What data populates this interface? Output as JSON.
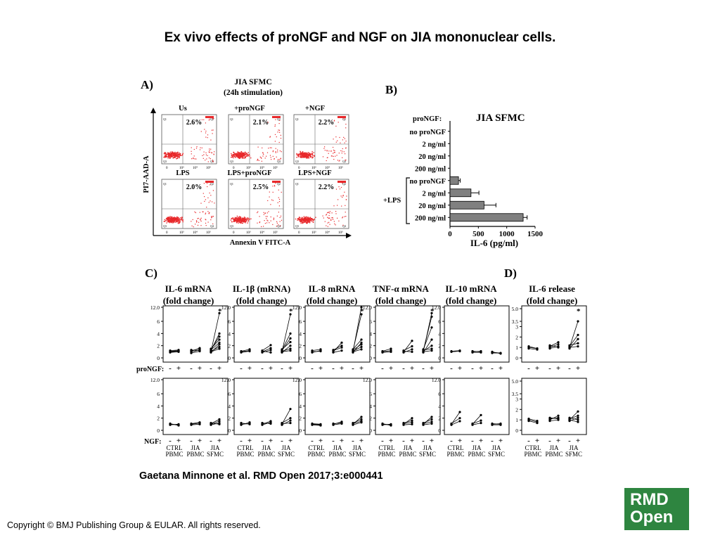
{
  "title": "Ex vivo effects of proNGF and NGF on JIA mononuclear cells.",
  "citation": "Gaetana Minnone et al. RMD Open 2017;3:e000441",
  "copyright": "Copyright © BMJ Publishing Group & EULAR. All rights reserved.",
  "logo": {
    "line1": "RMD",
    "line2": "Open",
    "color": "#2e8540"
  },
  "panel_a": {
    "label": "A)",
    "heading1": "JIA SFMC",
    "heading2": "(24h stimulation)",
    "ylabel": "PI7-AAD-A",
    "xlabel": "Annexin V FITC-A",
    "plots": [
      {
        "name": "Us",
        "pct": "2.6%"
      },
      {
        "name": "+proNGF",
        "pct": "2.1%"
      },
      {
        "name": "+NGF",
        "pct": "2.2%"
      },
      {
        "name": "LPS",
        "pct": "2.0%"
      },
      {
        "name": "LPS+proNGF",
        "pct": "2.5%"
      },
      {
        "name": "LPS+NGF",
        "pct": "2.2%"
      }
    ],
    "quadrants": [
      "Q1",
      "Q2",
      "Q3",
      "Q4"
    ],
    "axis_ticks": [
      "0",
      "10³",
      "10⁴",
      "10⁵"
    ]
  },
  "chart_data": [
    {
      "type": "bar",
      "orientation": "horizontal",
      "title": "JIA SFMC",
      "panel": "B)",
      "group_header": "proNGF:",
      "group_label": "+LPS",
      "categories": [
        "no proNGF",
        "2 ng/ml",
        "20 ng/ml",
        "200 ng/ml",
        "no proNGF",
        "2 ng/ml",
        "20 ng/ml",
        "200 ng/ml"
      ],
      "values": [
        0,
        0,
        0,
        0,
        150,
        370,
        600,
        1290
      ],
      "errors": [
        0,
        0,
        0,
        0,
        30,
        140,
        210,
        70
      ],
      "xlabel": "IL-6 (pg/ml)",
      "xlim": [
        0,
        1500
      ],
      "xticks": [
        "0",
        "500",
        "1000",
        "1500"
      ],
      "bar_color": "#808080"
    },
    {
      "type": "line",
      "panel": "C)",
      "titles": [
        {
          "line1": "IL-6 mRNA",
          "line2": "(fold change)"
        },
        {
          "line1": "IL-1β (mRNA)",
          "line2": "(fold change)"
        },
        {
          "line1": "IL-8 mRNA",
          "line2": "(fold change)"
        },
        {
          "line1": "TNF-α mRNA",
          "line2": "(fold change)"
        },
        {
          "line1": "IL-10 mRNA",
          "line2": "(fold change)"
        }
      ],
      "row1_treatment": "proNGF:",
      "row2_treatment": "NGF:",
      "groups": [
        {
          "line1": "CTRL",
          "line2": "PBMC"
        },
        {
          "line1": "JIA",
          "line2": "PBMC"
        },
        {
          "line1": "JIA",
          "line2": "SFMC"
        }
      ],
      "signs": [
        "-",
        "+"
      ],
      "star": "*",
      "yticks": [
        "0",
        "2",
        "4",
        "6",
        "12.0"
      ],
      "ylim": [
        0,
        12
      ],
      "series": {
        "proNGF": [
          {
            "ctrl": [
              [
                1.0,
                1.1
              ],
              [
                1.2,
                1.3
              ],
              [
                0.9,
                1.0
              ],
              [
                1.1,
                1.2
              ]
            ],
            "jia": [
              [
                1.0,
                1.3
              ],
              [
                1.2,
                1.5
              ],
              [
                0.8,
                1.1
              ],
              [
                1.1,
                1.6
              ],
              [
                1.3,
                1.2
              ]
            ],
            "sf": [
              [
                1.0,
                9.5
              ],
              [
                1.2,
                4.0
              ],
              [
                1.5,
                3.0
              ],
              [
                0.9,
                2.2
              ],
              [
                1.1,
                1.8
              ],
              [
                1.3,
                2.5
              ],
              [
                1.0,
                1.5
              ],
              [
                1.4,
                3.5
              ]
            ],
            "star": true
          },
          {
            "ctrl": [
              [
                1.0,
                1.2
              ],
              [
                1.1,
                1.4
              ],
              [
                0.9,
                1.1
              ]
            ],
            "jia": [
              [
                1.0,
                1.6
              ],
              [
                1.2,
                2.1
              ],
              [
                0.9,
                1.3
              ],
              [
                1.1,
                0.9
              ]
            ],
            "sf": [
              [
                1.0,
                9.0
              ],
              [
                1.2,
                3.2
              ],
              [
                1.4,
                2.6
              ],
              [
                0.9,
                2.0
              ],
              [
                1.1,
                1.5
              ],
              [
                1.3,
                4.0
              ],
              [
                1.0,
                1.2
              ]
            ],
            "star": true
          },
          {
            "ctrl": [
              [
                1.0,
                1.1
              ],
              [
                1.2,
                1.4
              ],
              [
                0.9,
                1.2
              ]
            ],
            "jia": [
              [
                1.0,
                2.5
              ],
              [
                1.2,
                1.7
              ],
              [
                0.9,
                1.2
              ],
              [
                1.3,
                2.0
              ]
            ],
            "sf": [
              [
                1.0,
                12.0
              ],
              [
                1.2,
                9.0
              ],
              [
                1.4,
                3.0
              ],
              [
                0.9,
                2.5
              ],
              [
                1.1,
                1.8
              ],
              [
                1.3,
                2.2
              ],
              [
                1.0,
                1.4
              ]
            ],
            "star": true
          },
          {
            "ctrl": [
              [
                1.0,
                1.2
              ],
              [
                1.1,
                1.5
              ],
              [
                0.9,
                1.0
              ]
            ],
            "jia": [
              [
                1.0,
                2.8
              ],
              [
                1.2,
                1.9
              ],
              [
                0.9,
                1.4
              ],
              [
                1.1,
                1.0
              ]
            ],
            "sf": [
              [
                1.0,
                9.5
              ],
              [
                1.2,
                8.0
              ],
              [
                1.4,
                5.0
              ],
              [
                0.9,
                3.0
              ],
              [
                1.1,
                2.0
              ],
              [
                1.3,
                1.5
              ],
              [
                1.0,
                1.2
              ]
            ],
            "star": true
          },
          {
            "ctrl": [
              [
                1.0,
                1.1
              ],
              [
                1.1,
                1.2
              ]
            ],
            "jia": [
              [
                1.0,
                1.1
              ],
              [
                1.1,
                1.0
              ],
              [
                0.9,
                0.9
              ]
            ],
            "sf": [
              [
                0.9,
                0.8
              ],
              [
                1.0,
                0.7
              ],
              [
                0.8,
                0.8
              ]
            ],
            "star": false
          }
        ],
        "NGF": [
          {
            "ctrl": [
              [
                1.0,
                0.9
              ],
              [
                1.1,
                0.8
              ],
              [
                0.9,
                1.0
              ]
            ],
            "jia": [
              [
                1.0,
                1.2
              ],
              [
                1.1,
                1.3
              ],
              [
                0.9,
                1.0
              ]
            ],
            "sf": [
              [
                1.0,
                1.5
              ],
              [
                1.1,
                1.8
              ],
              [
                0.9,
                1.2
              ],
              [
                1.2,
                1.0
              ]
            ]
          },
          {
            "ctrl": [
              [
                1.0,
                1.1
              ],
              [
                1.2,
                1.0
              ],
              [
                0.9,
                1.3
              ]
            ],
            "jia": [
              [
                1.0,
                1.5
              ],
              [
                1.2,
                1.1
              ],
              [
                0.9,
                1.3
              ]
            ],
            "sf": [
              [
                1.0,
                3.5
              ],
              [
                1.2,
                2.0
              ],
              [
                0.9,
                1.6
              ],
              [
                1.1,
                1.2
              ]
            ]
          },
          {
            "ctrl": [
              [
                1.0,
                0.9
              ],
              [
                1.1,
                1.0
              ],
              [
                0.9,
                0.8
              ]
            ],
            "jia": [
              [
                1.0,
                1.4
              ],
              [
                1.1,
                1.2
              ],
              [
                0.9,
                1.1
              ]
            ],
            "sf": [
              [
                1.0,
                2.2
              ],
              [
                1.1,
                1.5
              ],
              [
                0.9,
                1.3
              ],
              [
                1.2,
                1.8
              ]
            ]
          },
          {
            "ctrl": [
              [
                1.0,
                0.9
              ],
              [
                1.1,
                0.8
              ],
              [
                0.9,
                1.0
              ]
            ],
            "jia": [
              [
                1.0,
                2.0
              ],
              [
                1.1,
                1.3
              ],
              [
                0.9,
                1.0
              ],
              [
                1.2,
                1.6
              ]
            ],
            "sf": [
              [
                1.0,
                2.2
              ],
              [
                1.1,
                1.4
              ],
              [
                0.9,
                1.1
              ],
              [
                1.2,
                1.8
              ]
            ]
          },
          {
            "ctrl": [
              [
                1.0,
                3.0
              ],
              [
                1.1,
                2.0
              ],
              [
                0.9,
                1.5
              ]
            ],
            "jia": [
              [
                1.0,
                2.5
              ],
              [
                1.1,
                1.6
              ],
              [
                0.9,
                1.2
              ]
            ],
            "sf": [
              [
                1.0,
                1.1
              ],
              [
                1.1,
                1.0
              ],
              [
                0.9,
                0.9
              ]
            ]
          }
        ]
      }
    },
    {
      "type": "line",
      "panel": "D)",
      "title": {
        "line1": "IL-6 release",
        "line2": "(fold change)"
      },
      "yticks": [
        "0",
        "1",
        "2",
        "3",
        "3.5",
        "5.0"
      ],
      "star": "*",
      "series": {
        "proNGF": {
          "ctrl": [
            [
              1.0,
              0.9
            ],
            [
              0.9,
              0.8
            ],
            [
              1.1,
              0.9
            ]
          ],
          "jia": [
            [
              1.0,
              1.3
            ],
            [
              1.1,
              1.5
            ],
            [
              0.9,
              1.1
            ],
            [
              1.2,
              1.0
            ]
          ],
          "sf": [
            [
              1.0,
              3.5
            ],
            [
              1.1,
              2.2
            ],
            [
              0.9,
              1.8
            ],
            [
              1.2,
              1.4
            ],
            [
              1.0,
              1.1
            ]
          ]
        },
        "NGF": {
          "ctrl": [
            [
              1.0,
              0.8
            ],
            [
              0.9,
              0.7
            ],
            [
              1.1,
              0.9
            ]
          ],
          "jia": [
            [
              1.0,
              1.4
            ],
            [
              1.1,
              1.2
            ],
            [
              0.9,
              1.0
            ],
            [
              1.2,
              1.1
            ]
          ],
          "sf": [
            [
              1.0,
              1.8
            ],
            [
              1.1,
              1.4
            ],
            [
              0.9,
              1.2
            ],
            [
              1.2,
              1.0
            ],
            [
              1.0,
              0.8
            ]
          ]
        }
      }
    }
  ]
}
